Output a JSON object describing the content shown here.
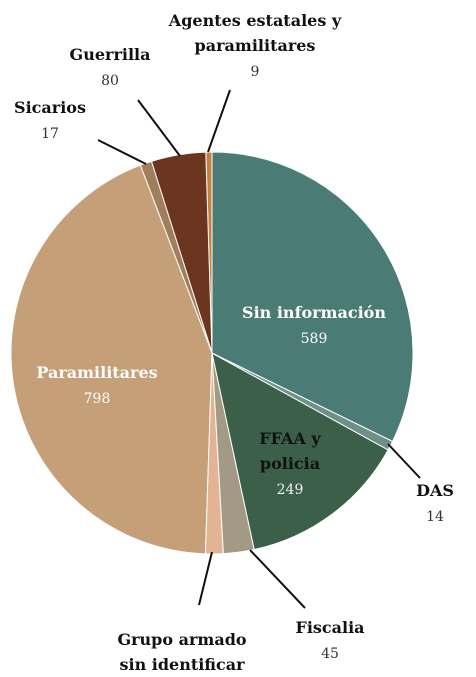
{
  "chart_data": {
    "type": "pie",
    "categories": [
      "Sin información",
      "DAS",
      "FFAA y policia",
      "Fiscalia",
      "Grupo armado sin identificar",
      "Paramilitares",
      "Sicarios",
      "Guerrilla",
      "Agentes estatales y paramilitares"
    ],
    "values": [
      589,
      14,
      249,
      45,
      26,
      798,
      17,
      80,
      9
    ],
    "colors": [
      "#4b7b75",
      "#6f8f89",
      "#3b5f49",
      "#a39a86",
      "#e3b493",
      "#c49f78",
      "#a07d5b",
      "#6b3520",
      "#c8803f"
    ]
  }
}
